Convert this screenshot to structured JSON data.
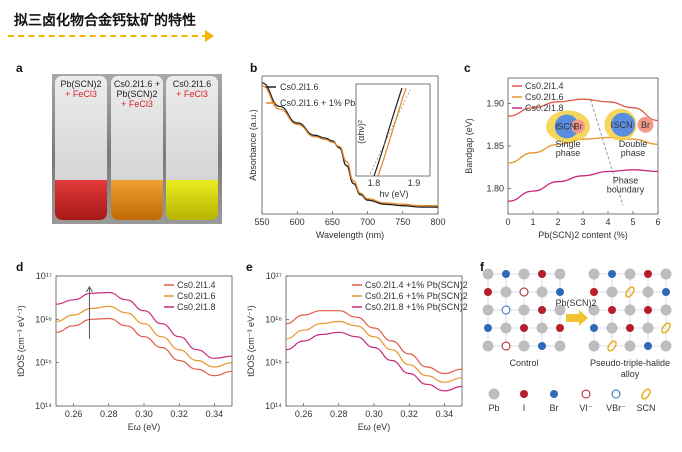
{
  "header": {
    "title": "拟三卤化物合金钙钛矿的特性"
  },
  "panels": {
    "a": {
      "label": "a",
      "vials": [
        {
          "line1": "Pb(SCN)2",
          "line2": "",
          "reagent": "+ FeCl3"
        },
        {
          "line1": "Cs0.2I1.6 +",
          "line2": "Pb(SCN)2",
          "reagent": "+ FeCl3"
        },
        {
          "line1": "Cs0.2I1.6",
          "line2": "",
          "reagent": "+ FeCl3"
        }
      ],
      "colors": {
        "vial1": "#c8202a",
        "vial2": "#e08a10",
        "vial3": "#d4d600"
      }
    },
    "b": {
      "label": "b",
      "legend": [
        "Cs0.2I1.6",
        "Cs0.2I1.6 + 1% Pb(SCN)2"
      ],
      "inset_ylabel": "(αhν)²",
      "inset_xlabel": "hν (eV)",
      "inset_ticks": [
        "1.8",
        "1.9"
      ]
    },
    "c": {
      "label": "c",
      "legend": [
        "Cs0.2I1.4",
        "Cs0.2I1.6",
        "Cs0.2I1.8"
      ],
      "single_phase": "Single phase",
      "double_phase": "Double phase",
      "boundary": "Phase boundary",
      "bubble_labels": [
        "I",
        "SCN",
        "Br"
      ]
    },
    "d": {
      "label": "d",
      "legend": [
        "Cs0.2I1.4",
        "Cs0.2I1.6",
        "Cs0.2I1.8"
      ]
    },
    "e": {
      "label": "e",
      "legend": [
        "Cs0.2I1.4 +1% Pb(SCN)2",
        "Cs0.2I1.6 +1% Pb(SCN)2",
        "Cs0.2I1.8 +1% Pb(SCN)2"
      ]
    },
    "f": {
      "label": "f",
      "arrow_label": "Pb(SCN)2",
      "control": "Control",
      "alloy": "Pseudo-triple-halide alloy",
      "legend": [
        "Pb",
        "I",
        "Br",
        "VI⁻",
        "VBr⁻",
        "SCN"
      ]
    }
  },
  "chart_data": [
    {
      "panel": "b",
      "type": "line",
      "xlabel": "Wavelength (nm)",
      "ylabel": "Absorbance (a.u.)",
      "xlim": [
        550,
        800
      ],
      "xticks": [
        "550",
        "600",
        "650",
        "700",
        "750",
        "800"
      ],
      "x": [
        550,
        575,
        600,
        625,
        640,
        650,
        660,
        670,
        680,
        690,
        700,
        725,
        750,
        775,
        800
      ],
      "series": [
        {
          "name": "Cs0.2I1.6",
          "color": "#222222",
          "values": [
            0.95,
            0.78,
            0.66,
            0.57,
            0.55,
            0.53,
            0.48,
            0.35,
            0.22,
            0.14,
            0.1,
            0.07,
            0.06,
            0.05,
            0.05
          ]
        },
        {
          "name": "Cs0.2I1.6 + 1% Pb(SCN)2",
          "color": "#e0862a",
          "values": [
            0.93,
            0.76,
            0.65,
            0.56,
            0.54,
            0.52,
            0.49,
            0.38,
            0.24,
            0.15,
            0.11,
            0.08,
            0.07,
            0.06,
            0.06
          ]
        }
      ]
    },
    {
      "panel": "c",
      "type": "line",
      "xlabel": "Pb(SCN)2 content (%)",
      "ylabel": "Bandgap (eV)",
      "xlim": [
        0,
        6
      ],
      "ylim": [
        1.77,
        1.93
      ],
      "xticks": [
        "0",
        "1",
        "2",
        "3",
        "4",
        "5",
        "6"
      ],
      "yticks": [
        "1.80",
        "1.85",
        "1.90"
      ],
      "x": [
        0,
        1,
        2,
        3,
        4,
        5,
        6
      ],
      "series": [
        {
          "name": "Cs0.2I1.4",
          "color": "#e05a48",
          "values": [
            1.885,
            1.895,
            1.902,
            1.905,
            1.902,
            1.895,
            1.88
          ]
        },
        {
          "name": "Cs0.2I1.6",
          "color": "#e8942a",
          "values": [
            1.83,
            1.842,
            1.852,
            1.858,
            1.86,
            1.858,
            1.852
          ]
        },
        {
          "name": "Cs0.2I1.8",
          "color": "#c8287a",
          "values": [
            1.785,
            1.797,
            1.808,
            1.815,
            1.82,
            1.822,
            1.82
          ]
        }
      ]
    },
    {
      "panel": "d",
      "type": "line",
      "xlabel": "Eω (eV)",
      "ylabel": "tDOS (cm⁻³ eV⁻¹)",
      "xlim": [
        0.25,
        0.35
      ],
      "ylim_log": [
        14,
        17
      ],
      "xticks": [
        "0.26",
        "0.28",
        "0.30",
        "0.32",
        "0.34"
      ],
      "yticks": [
        "10¹⁴",
        "10¹⁵",
        "10¹⁶",
        "10¹⁷"
      ],
      "x": [
        0.25,
        0.26,
        0.27,
        0.28,
        0.29,
        0.3,
        0.31,
        0.32,
        0.33,
        0.34,
        0.35
      ],
      "series": [
        {
          "name": "Cs0.2I1.4",
          "color": "#e05a48",
          "log_values": [
            15.7,
            15.85,
            16.0,
            16.02,
            15.85,
            15.6,
            15.35,
            15.05,
            14.85,
            14.7,
            14.8
          ]
        },
        {
          "name": "Cs0.2I1.6",
          "color": "#e8942a",
          "log_values": [
            15.95,
            16.1,
            16.25,
            16.3,
            16.15,
            15.9,
            15.6,
            15.3,
            15.05,
            14.9,
            15.0
          ]
        },
        {
          "name": "Cs0.2I1.8",
          "color": "#c8287a",
          "log_values": [
            16.35,
            16.45,
            16.6,
            16.62,
            16.45,
            16.2,
            15.9,
            15.6,
            15.3,
            15.1,
            15.15
          ]
        }
      ]
    },
    {
      "panel": "e",
      "type": "line",
      "xlabel": "Eω (eV)",
      "ylabel": "tDOS (cm⁻³ eV⁻¹)",
      "xlim": [
        0.25,
        0.35
      ],
      "ylim_log": [
        14,
        17
      ],
      "xticks": [
        "0.26",
        "0.28",
        "0.30",
        "0.32",
        "0.34"
      ],
      "yticks": [
        "10¹⁴",
        "10¹⁵",
        "10¹⁶",
        "10¹⁷"
      ],
      "x": [
        0.25,
        0.26,
        0.27,
        0.28,
        0.29,
        0.3,
        0.31,
        0.32,
        0.33,
        0.34,
        0.35
      ],
      "series": [
        {
          "name": "Cs0.2I1.4 +1% Pb(SCN)2",
          "color": "#e05a48",
          "log_values": [
            15.9,
            16.1,
            16.2,
            16.2,
            16.05,
            15.8,
            15.5,
            15.2,
            14.9,
            14.75,
            14.85
          ]
        },
        {
          "name": "Cs0.2I1.6 +1% Pb(SCN)2",
          "color": "#e8942a",
          "log_values": [
            15.55,
            15.75,
            15.9,
            15.95,
            15.85,
            15.6,
            15.3,
            14.95,
            14.7,
            14.55,
            14.65
          ]
        },
        {
          "name": "Cs0.2I1.8 +1% Pb(SCN)2",
          "color": "#c8287a",
          "log_values": [
            15.3,
            15.5,
            15.65,
            15.7,
            15.6,
            15.35,
            15.05,
            14.75,
            14.5,
            14.35,
            14.45
          ]
        }
      ]
    }
  ]
}
